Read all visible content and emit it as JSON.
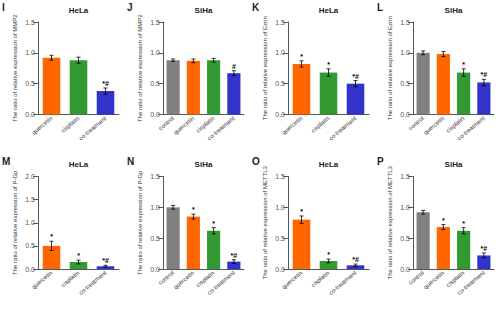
{
  "chart_data": [
    {
      "type": "bar",
      "panel_label": "I",
      "title": "HeLa",
      "ylabel": "The ratio of relative expression of MMP2",
      "categories": [
        "quercetin",
        "cisplatin",
        "co-treatment"
      ],
      "values": [
        0.92,
        0.88,
        0.38
      ],
      "errors": [
        0.04,
        0.05,
        0.05
      ],
      "colors": [
        "#FF6600",
        "#339933",
        "#3333CC"
      ],
      "annotations": [
        {
          "category": "co-treatment",
          "text": "*#"
        }
      ],
      "ylim": [
        0,
        1.5
      ],
      "yticks": [
        {
          "value": 0,
          "label": "0.0"
        },
        0.5,
        {
          "value": 1,
          "label": "1.0"
        },
        1.5
      ],
      "grid": false
    },
    {
      "type": "bar",
      "panel_label": "J",
      "title": "SiHa",
      "ylabel": "The ratio of relative expression of MMP2",
      "categories": [
        "control",
        "quercetin",
        "cisplatin",
        "co-treatment"
      ],
      "values": [
        0.88,
        0.87,
        0.88,
        0.67
      ],
      "errors": [
        0.02,
        0.03,
        0.03,
        0.04
      ],
      "colors": [
        "#808080",
        "#FF6600",
        "#339933",
        "#3333CC"
      ],
      "annotations": [
        {
          "category": "co-treatment",
          "text": "#"
        }
      ],
      "ylim": [
        0,
        1.5
      ],
      "yticks": [
        {
          "value": 0,
          "label": "0.0"
        },
        0.5,
        {
          "value": 1,
          "label": "1.0"
        },
        1.5
      ],
      "grid": false
    },
    {
      "type": "bar",
      "panel_label": "K",
      "title": "HeLa",
      "ylabel": "The ratio of relative expression of Ezrin",
      "categories": [
        "quercetin",
        "cisplatin",
        "co-treatment"
      ],
      "values": [
        0.82,
        0.68,
        0.5
      ],
      "errors": [
        0.05,
        0.06,
        0.05
      ],
      "colors": [
        "#FF6600",
        "#339933",
        "#3333CC"
      ],
      "annotations": [
        {
          "category": "quercetin",
          "text": "*"
        },
        {
          "category": "cisplatin",
          "text": "*"
        },
        {
          "category": "co-treatment",
          "text": "*#"
        }
      ],
      "ylim": [
        0,
        1.5
      ],
      "yticks": [
        {
          "value": 0,
          "label": "0.0"
        },
        0.5,
        {
          "value": 1,
          "label": "1.0"
        },
        1.5
      ],
      "grid": false
    },
    {
      "type": "bar",
      "panel_label": "L",
      "title": "SiHa",
      "ylabel": "The ratio of relative expression of Ezrin",
      "categories": [
        "control",
        "quercetin",
        "cisplatin",
        "co-treatment"
      ],
      "values": [
        1.0,
        0.98,
        0.68,
        0.52
      ],
      "errors": [
        0.03,
        0.04,
        0.06,
        0.05
      ],
      "colors": [
        "#808080",
        "#FF6600",
        "#339933",
        "#3333CC"
      ],
      "annotations": [
        {
          "category": "cisplatin",
          "text": "*"
        },
        {
          "category": "co-treatment",
          "text": "*#"
        }
      ],
      "ylim": [
        0,
        1.5
      ],
      "yticks": [
        {
          "value": 0,
          "label": "0.0"
        },
        0.5,
        {
          "value": 1,
          "label": "1.0"
        },
        1.5
      ],
      "grid": false
    },
    {
      "type": "bar",
      "panel_label": "M",
      "title": "HeLa",
      "ylabel": "The ratio of relative expression of P-Gp",
      "categories": [
        "quercetin",
        "cisplatin",
        "co-treatment"
      ],
      "values": [
        0.5,
        0.15,
        0.06
      ],
      "errors": [
        0.1,
        0.04,
        0.02
      ],
      "colors": [
        "#FF6600",
        "#339933",
        "#3333CC"
      ],
      "annotations": [
        {
          "category": "quercetin",
          "text": "*"
        },
        {
          "category": "cisplatin",
          "text": "*"
        },
        {
          "category": "co-treatment",
          "text": "*#"
        }
      ],
      "ylim": [
        0,
        2.0
      ],
      "yticks": [
        {
          "value": 0,
          "label": "0.0"
        },
        0.5,
        {
          "value": 1,
          "label": "1.0"
        },
        1.5,
        {
          "value": 2,
          "label": "2.0"
        }
      ],
      "grid": false
    },
    {
      "type": "bar",
      "panel_label": "N",
      "title": "SiHa",
      "ylabel": "The ratio of relative expression of P-Gp",
      "categories": [
        "control",
        "quercetin",
        "cisplatin",
        "co-treatment"
      ],
      "values": [
        1.0,
        0.85,
        0.62,
        0.12
      ],
      "errors": [
        0.03,
        0.04,
        0.05,
        0.03
      ],
      "colors": [
        "#808080",
        "#FF6600",
        "#339933",
        "#3333CC"
      ],
      "annotations": [
        {
          "category": "quercetin",
          "text": "*"
        },
        {
          "category": "cisplatin",
          "text": "*"
        },
        {
          "category": "co-treatment",
          "text": "*#"
        }
      ],
      "ylim": [
        0,
        1.5
      ],
      "yticks": [
        {
          "value": 0,
          "label": "0.0"
        },
        0.5,
        {
          "value": 1,
          "label": "1.0"
        },
        1.5
      ],
      "grid": false
    },
    {
      "type": "bar",
      "panel_label": "O",
      "title": "HeLa",
      "ylabel": "The ratio of relative expression of METTL3",
      "categories": [
        "quercetin",
        "cisplatin",
        "co-treatment"
      ],
      "values": [
        0.8,
        0.13,
        0.06
      ],
      "errors": [
        0.06,
        0.03,
        0.02
      ],
      "colors": [
        "#FF6600",
        "#339933",
        "#3333CC"
      ],
      "annotations": [
        {
          "category": "quercetin",
          "text": "*"
        },
        {
          "category": "cisplatin",
          "text": "*"
        },
        {
          "category": "co-treatment",
          "text": "*#"
        }
      ],
      "ylim": [
        0,
        1.5
      ],
      "yticks": [
        {
          "value": 0,
          "label": "0.0"
        },
        0.5,
        {
          "value": 1,
          "label": "1.0"
        },
        1.5
      ],
      "grid": false
    },
    {
      "type": "bar",
      "panel_label": "P",
      "title": "SiHa",
      "ylabel": "The ratio of relative expression of METTL3",
      "categories": [
        "control",
        "quercetin",
        "cisplatin",
        "co-treatment"
      ],
      "values": [
        0.92,
        0.68,
        0.62,
        0.22
      ],
      "errors": [
        0.03,
        0.04,
        0.05,
        0.04
      ],
      "colors": [
        "#808080",
        "#FF6600",
        "#339933",
        "#3333CC"
      ],
      "annotations": [
        {
          "category": "quercetin",
          "text": "*"
        },
        {
          "category": "cisplatin",
          "text": "*"
        },
        {
          "category": "co-treatment",
          "text": "*#"
        }
      ],
      "ylim": [
        0,
        1.5
      ],
      "yticks": [
        {
          "value": 0,
          "label": "0.0"
        },
        0.5,
        {
          "value": 1,
          "label": "1.0"
        },
        1.5
      ],
      "grid": false
    }
  ]
}
